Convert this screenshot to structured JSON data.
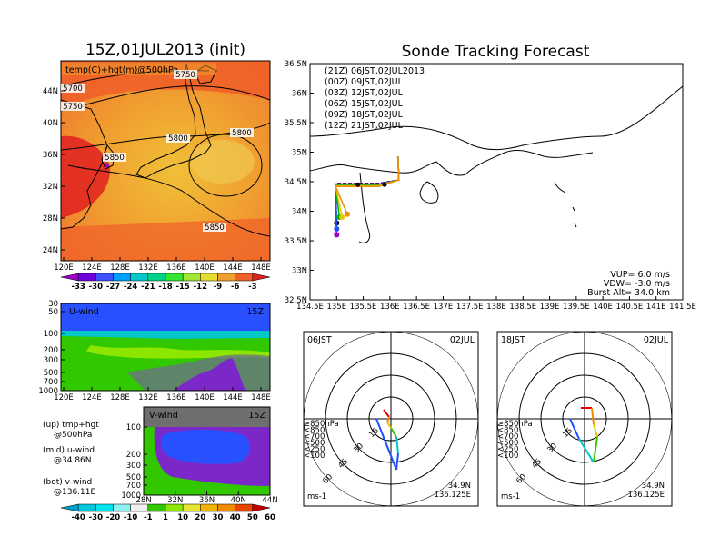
{
  "map_title": "15Z,01JUL2013 (init)",
  "map_label": "temp(C)+hgt(m)@500hPa",
  "map_xticks": [
    "120E",
    "124E",
    "128E",
    "132E",
    "136E",
    "140E",
    "144E",
    "148E"
  ],
  "map_yticks": [
    "44N",
    "40N",
    "36N",
    "32N",
    "28N",
    "24N"
  ],
  "contour_labels": [
    "5700",
    "5750",
    "5750",
    "5800",
    "5800",
    "5850",
    "5850"
  ],
  "temp_colorbar": {
    "labels": [
      "-33",
      "-30",
      "-27",
      "-24",
      "-21",
      "-18",
      "-15",
      "-12",
      "-9",
      "-6",
      "-3"
    ],
    "colors": [
      "#a000c8",
      "#6e00dc",
      "#3c50ff",
      "#00a0ff",
      "#00c8c8",
      "#00d28c",
      "#32e632",
      "#a0e632",
      "#e6dc32",
      "#f0a030",
      "#f06028",
      "#e02020"
    ]
  },
  "uwind": {
    "label": "U-wind",
    "time": "15Z",
    "yticks": [
      "30",
      "50",
      "100",
      "200",
      "300",
      "500",
      "700",
      "1000"
    ],
    "xticks": [
      "120E",
      "124E",
      "128E",
      "132E",
      "136E",
      "140E",
      "144E",
      "148E"
    ]
  },
  "vwind": {
    "label": "V-wind",
    "time": "15Z",
    "yticks": [
      "100",
      "200",
      "300",
      "500",
      "700",
      "1000"
    ],
    "xticks": [
      "28N",
      "32N",
      "36N",
      "40N",
      "44N"
    ]
  },
  "side_notes": [
    "(up) tmp+hgt",
    "@500hPa",
    "(mid) u-wind",
    "@34.86N",
    "(bot) v-wind",
    "@136.11E"
  ],
  "wind_colorbar": {
    "labels": [
      "-40",
      "-30",
      "-20",
      "-10",
      "-1",
      "1",
      "10",
      "20",
      "30",
      "40",
      "50",
      "60"
    ],
    "colors": [
      "#00a0c8",
      "#00c8dc",
      "#00e6f0",
      "#8cf0f0",
      "#f0f0f0",
      "#32c800",
      "#8ce600",
      "#e6e632",
      "#f0b400",
      "#f08c00",
      "#e64600",
      "#c80000"
    ]
  },
  "track_title": "Sonde Tracking Forecast",
  "track_legend": [
    {
      "text": "(21Z)  06JST,02JUL2013",
      "color": "#000000"
    },
    {
      "text": "(00Z)  09JST,02JUL",
      "color": "#a000c8"
    },
    {
      "text": "(03Z)  12JST,02JUL",
      "color": "#1e50ff"
    },
    {
      "text": "(06Z)  15JST,02JUL",
      "color": "#00b400"
    },
    {
      "text": "(09Z)  18JST,02JUL",
      "color": "#e6c800"
    },
    {
      "text": "(12Z)  21JST,02JUL",
      "color": "#f08c00"
    }
  ],
  "track_xticks": [
    "134.5E",
    "135E",
    "135.5E",
    "136E",
    "136.5E",
    "137E",
    "137.5E",
    "138E",
    "138.5E",
    "139E",
    "139.5E",
    "140E",
    "140.5E",
    "141E",
    "141.5E"
  ],
  "track_yticks": [
    "36.5N",
    "36N",
    "35.5N",
    "35N",
    "34.5N",
    "34N",
    "33.5N",
    "33N",
    "32.5N"
  ],
  "track_info": [
    "VUP= 6.0 m/s",
    "VDW= -3.0 m/s",
    "Burst Alt= 34.0 km"
  ],
  "hodo_left": {
    "time": "06JST",
    "date": "02JUL",
    "rings": [
      "15",
      "30",
      "45",
      "60"
    ],
    "unit": "ms-1",
    "lat": "34.9N",
    "lon": "136.125E"
  },
  "hodo_right": {
    "time": "18JST",
    "date": "02JUL",
    "rings": [
      "15",
      "30",
      "45",
      "60"
    ],
    "unit": "ms-1",
    "lat": "34.9N",
    "lon": "136.125E"
  },
  "hodo_levels": [
    {
      "text": "≥850hPa",
      "color": "#e60000"
    },
    {
      "text": "<850",
      "color": "#f08c00"
    },
    {
      "text": "<700",
      "color": "#e6c800"
    },
    {
      "text": "<500",
      "color": "#32c800"
    },
    {
      "text": "<250",
      "color": "#00c8c8"
    },
    {
      "text": "<100",
      "color": "#1e50ff"
    }
  ],
  "chart_data": [
    {
      "type": "heatmap",
      "title": "15Z,01JUL2013 (init)",
      "subtitle": "temp(C)+hgt(m)@500hPa",
      "x_range": [
        "120E",
        "150E"
      ],
      "y_range": [
        "22N",
        "47N"
      ],
      "contour_levels": [
        5700,
        5750,
        5800,
        5850
      ],
      "colorbar_range": [
        -33,
        -3
      ]
    },
    {
      "type": "heatmap",
      "title": "U-wind",
      "time": "15Z",
      "location": "@34.86N",
      "y_axis": "hPa",
      "y_range": [
        1000,
        30
      ],
      "x_range": [
        "120E",
        "149E"
      ]
    },
    {
      "type": "heatmap",
      "title": "V-wind",
      "time": "15Z",
      "location": "@136.11E",
      "y_axis": "hPa",
      "y_range": [
        1000,
        100
      ],
      "x_range": [
        "28N",
        "44N"
      ]
    },
    {
      "type": "line",
      "title": "Sonde Tracking Forecast",
      "xlim": [
        134.5,
        141.5
      ],
      "ylim": [
        32.5,
        36.5
      ],
      "series": [
        {
          "name": "(21Z) 06JST,02JUL2013",
          "launch": [
            136.1,
            34.9
          ],
          "landing": [
            135.0,
            33.8
          ]
        },
        {
          "name": "(00Z) 09JST,02JUL",
          "landing": [
            135.0,
            33.6
          ]
        },
        {
          "name": "(03Z) 12JST,02JUL",
          "landing": [
            135.0,
            33.7
          ]
        },
        {
          "name": "(06Z) 15JST,02JUL",
          "landing": [
            135.05,
            33.9
          ]
        },
        {
          "name": "(09Z) 18JST,02JUL",
          "landing": [
            135.1,
            33.9
          ]
        },
        {
          "name": "(12Z) 21JST,02JUL",
          "landing": [
            135.2,
            33.95
          ]
        }
      ],
      "annotations": [
        "VUP= 6.0 m/s",
        "VDW= -3.0 m/s",
        "Burst Alt= 34.0 km"
      ]
    },
    {
      "type": "line",
      "title": "Hodograph 06JST 02JUL",
      "rings_ms": [
        15,
        30,
        45,
        60
      ],
      "location": "34.9N 136.125E"
    },
    {
      "type": "line",
      "title": "Hodograph 18JST 02JUL",
      "rings_ms": [
        15,
        30,
        45,
        60
      ],
      "location": "34.9N 136.125E"
    }
  ]
}
